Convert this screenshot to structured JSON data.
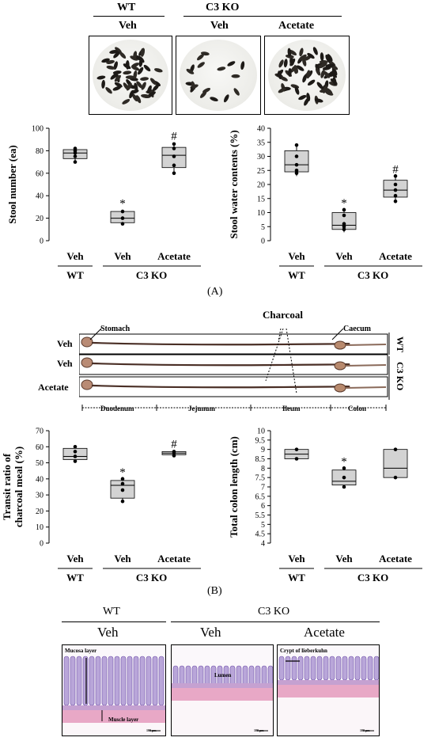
{
  "panel_a": {
    "groups": {
      "wt": "WT",
      "c3ko": "C3 KO"
    },
    "dish_labels": [
      "Veh",
      "Veh",
      "Acetate"
    ],
    "panel_label": "(A)"
  },
  "panel_b": {
    "groups": {
      "wt": "WT",
      "c3ko": "C3 KO"
    },
    "charcoal_label": "Charcoal",
    "stomach_label": "Stomach",
    "caecum_label": "Caecum",
    "row_labels": [
      "Veh",
      "Veh",
      "Acetate"
    ],
    "segments": [
      "Duodenum",
      "Jejunum",
      "Ileum",
      "Colon"
    ],
    "panel_label": "(B)"
  },
  "panel_c": {
    "groups": {
      "wt": "WT",
      "c3ko": "C3 KO"
    },
    "treatments": [
      "Veh",
      "Veh",
      "Acetate"
    ],
    "annotations": {
      "mucosa": "Mucosa layer",
      "muscle": "Muscle layer",
      "lumen": "Lumen",
      "crypt": "Crypt of lieberkuhn",
      "scale": "100 µm"
    }
  },
  "chart_data": [
    {
      "type": "box",
      "ylabel": "Stool number (ea)",
      "ylim": [
        0,
        100
      ],
      "yticks": [
        0,
        20,
        40,
        60,
        80,
        100
      ],
      "categories": [
        "Veh",
        "Veh",
        "Acetate"
      ],
      "group_labels": [
        "WT",
        "C3 KO"
      ],
      "boxes": [
        {
          "min": 70,
          "q1": 73,
          "median": 78,
          "q3": 81,
          "max": 83,
          "points": [
            70,
            75,
            78,
            80,
            82
          ]
        },
        {
          "min": 14,
          "q1": 16,
          "median": 20,
          "q3": 26,
          "max": 27,
          "points": [
            15,
            20,
            26
          ],
          "mark": "*"
        },
        {
          "min": 59,
          "q1": 65,
          "median": 76,
          "q3": 83,
          "max": 87,
          "points": [
            60,
            67,
            75,
            82,
            86
          ],
          "mark": "#"
        }
      ]
    },
    {
      "type": "box",
      "ylabel": "Stool water contents (%)",
      "ylim": [
        0,
        40
      ],
      "yticks": [
        0,
        5,
        10,
        15,
        20,
        25,
        30,
        35,
        40
      ],
      "categories": [
        "Veh",
        "Veh",
        "Acetate"
      ],
      "group_labels": [
        "WT",
        "C3 KO"
      ],
      "boxes": [
        {
          "min": 23,
          "q1": 24.5,
          "median": 27,
          "q3": 32,
          "max": 34,
          "points": [
            24,
            25,
            27,
            30,
            34
          ]
        },
        {
          "min": 3,
          "q1": 4,
          "median": 5.5,
          "q3": 10,
          "max": 11,
          "points": [
            4,
            5,
            6,
            9,
            11
          ],
          "mark": "*"
        },
        {
          "min": 14,
          "q1": 15.5,
          "median": 18,
          "q3": 21.5,
          "max": 23,
          "points": [
            14,
            16,
            18,
            20,
            23
          ],
          "mark": "#"
        }
      ]
    },
    {
      "type": "box",
      "ylabel": "Transit ratio of charcoal meal (%)",
      "ylim": [
        0,
        70
      ],
      "yticks": [
        0,
        10,
        20,
        30,
        40,
        50,
        60,
        70
      ],
      "categories": [
        "Veh",
        "Veh",
        "Acetate"
      ],
      "group_labels": [
        "WT",
        "C3 KO"
      ],
      "boxes": [
        {
          "min": 50,
          "q1": 52,
          "median": 54,
          "q3": 59,
          "max": 60,
          "points": [
            51,
            54,
            57,
            60
          ]
        },
        {
          "min": 26,
          "q1": 28,
          "median": 36,
          "q3": 39,
          "max": 40,
          "points": [
            26,
            33,
            37,
            40
          ],
          "mark": "*"
        },
        {
          "min": 54,
          "q1": 55,
          "median": 56,
          "q3": 57,
          "max": 57.5,
          "points": [
            54.5,
            56,
            57
          ],
          "mark": "#"
        }
      ]
    },
    {
      "type": "box",
      "ylabel": "Total colon length (cm)",
      "ylim": [
        4,
        10
      ],
      "yticks": [
        4,
        4.5,
        5,
        5.5,
        6,
        6.5,
        7,
        7.5,
        8,
        8.5,
        9,
        9.5,
        10
      ],
      "categories": [
        "Veh",
        "Veh",
        "Acetate"
      ],
      "group_labels": [
        "WT",
        "C3 KO"
      ],
      "boxes": [
        {
          "min": 8.5,
          "q1": 8.5,
          "median": 8.75,
          "q3": 9,
          "max": 9,
          "points": [
            8.5,
            9
          ]
        },
        {
          "min": 7,
          "q1": 7.1,
          "median": 7.3,
          "q3": 7.9,
          "max": 8,
          "points": [
            7,
            7.5,
            8
          ],
          "mark": "*"
        },
        {
          "min": 7.5,
          "q1": 7.5,
          "median": 8,
          "q3": 9,
          "max": 9,
          "points": [
            7.5,
            9
          ]
        }
      ]
    }
  ]
}
